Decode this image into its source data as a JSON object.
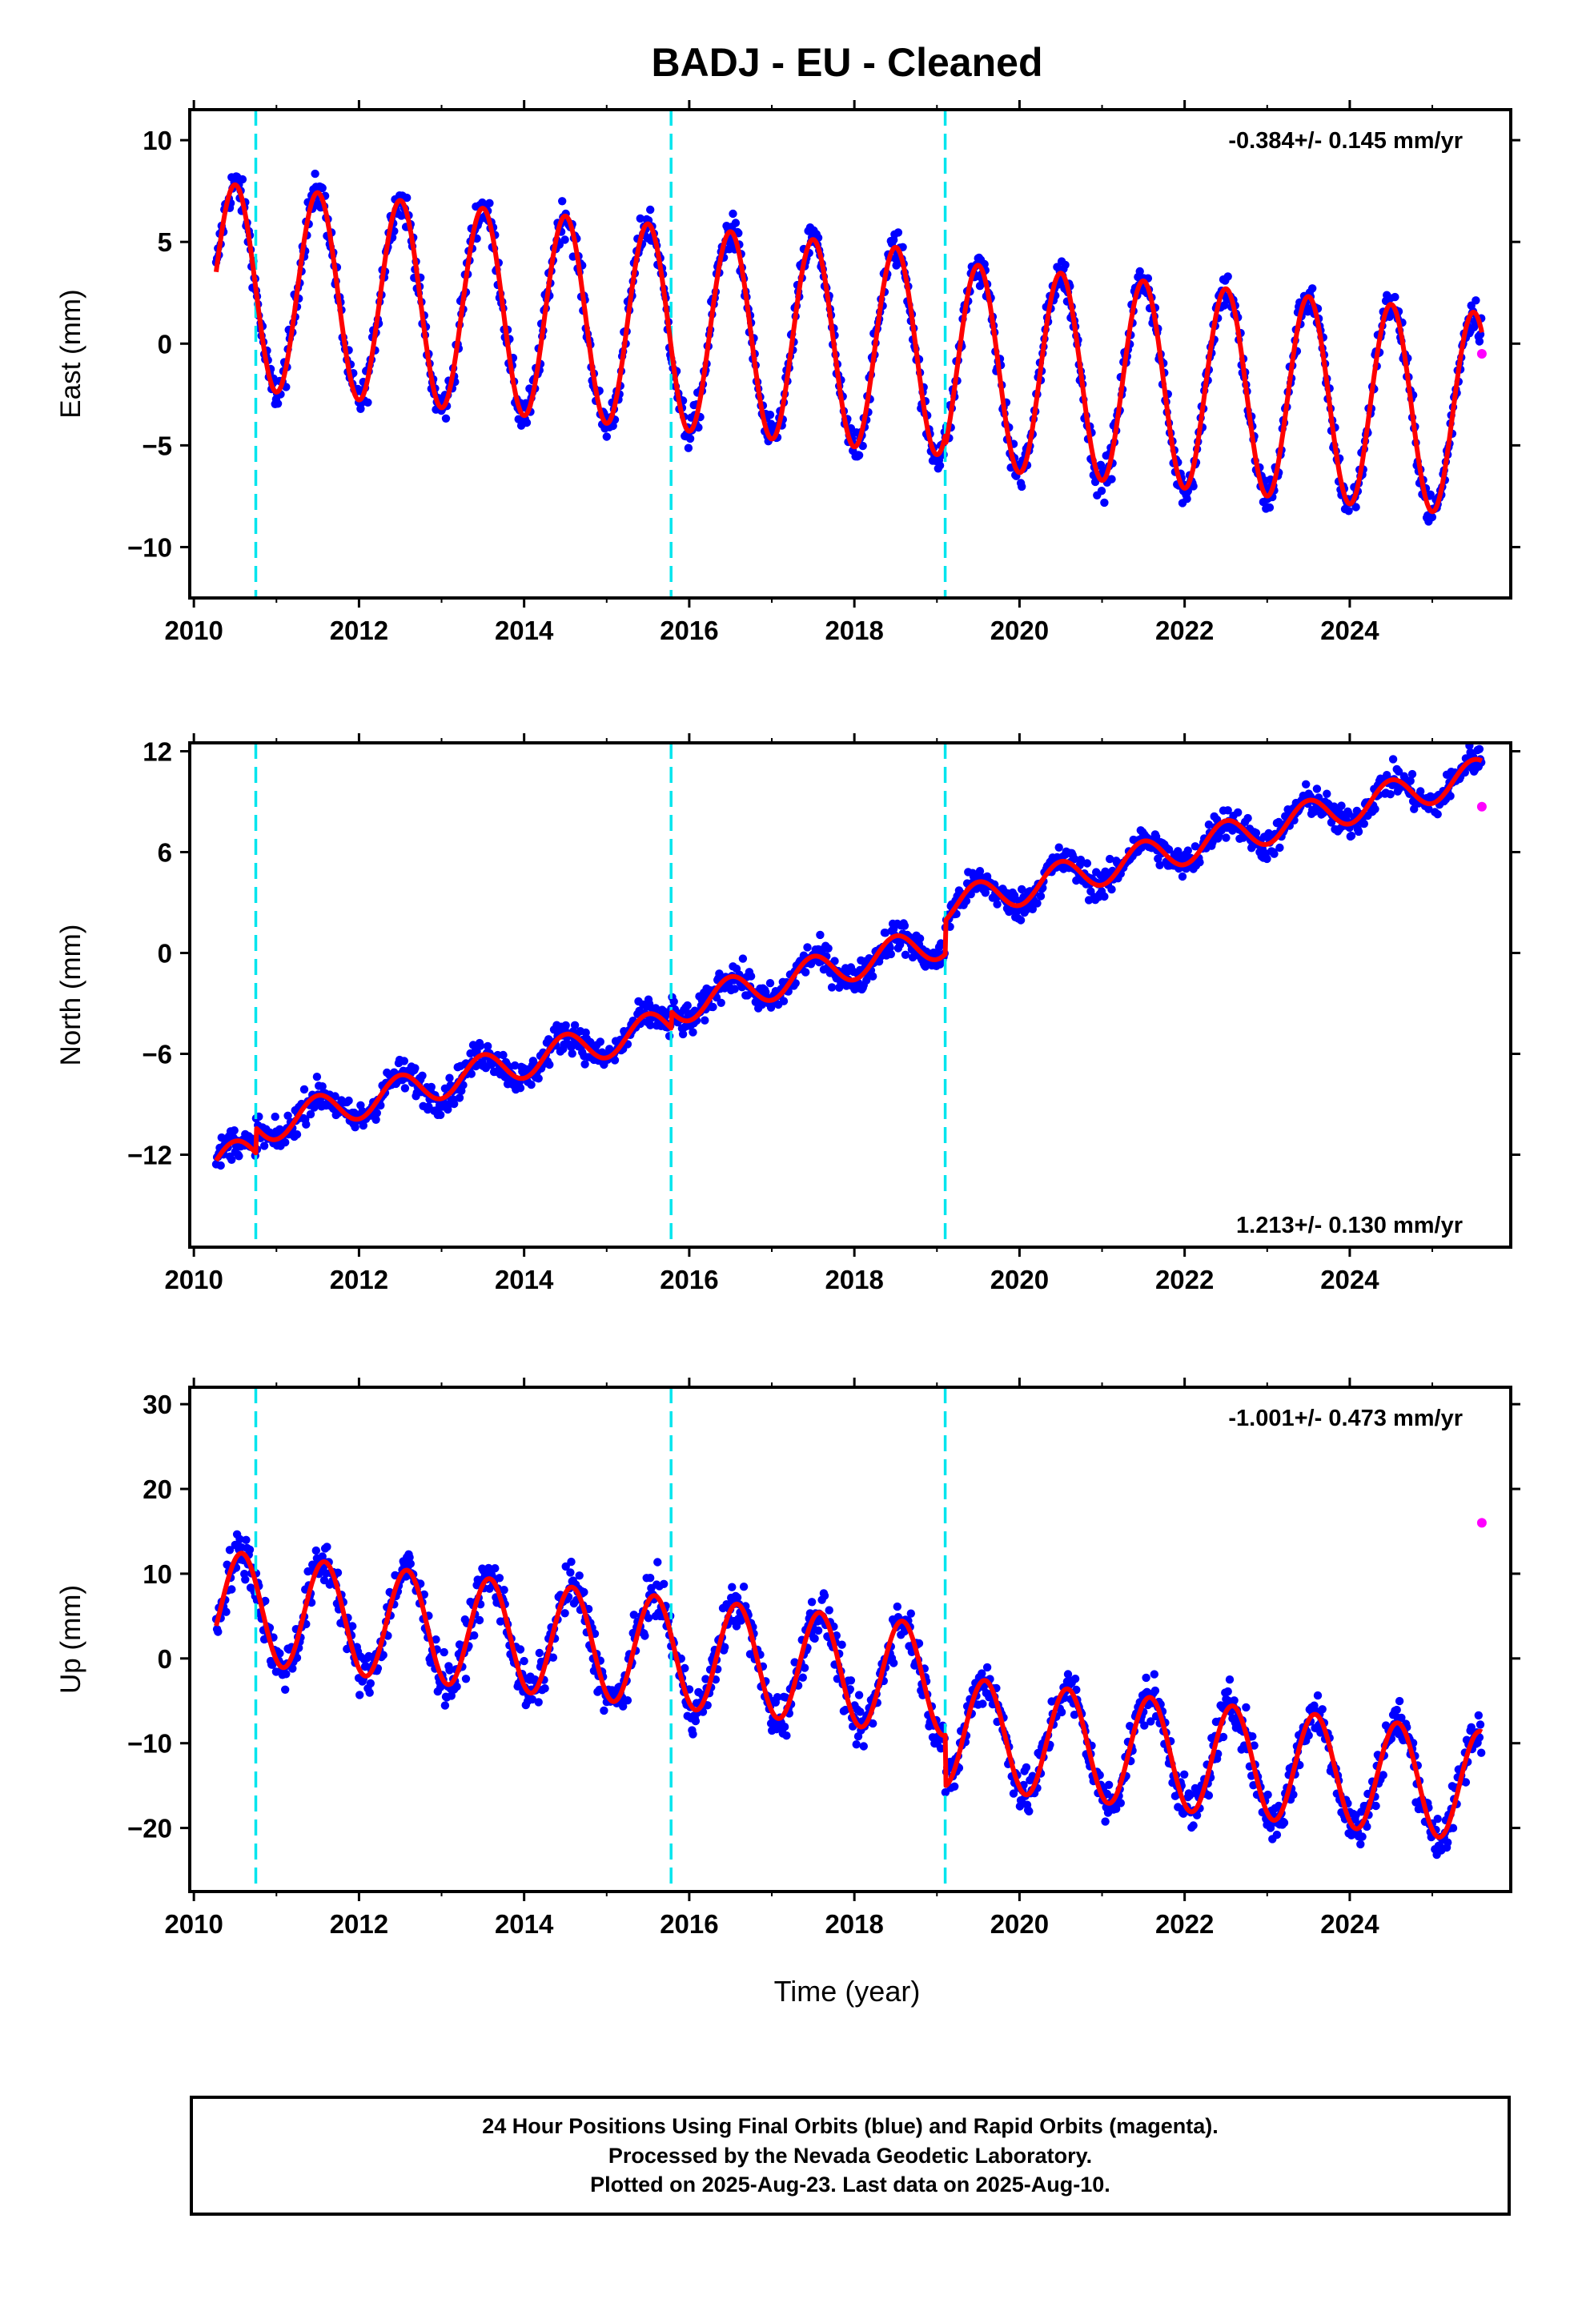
{
  "title": "BADJ  - EU - Cleaned",
  "xlabel": "Time (year)",
  "colors": {
    "final": "#0000ff",
    "rapid": "#ff00ff",
    "model": "#ff0000",
    "breaks": "#00e5ee"
  },
  "footer": {
    "line1": "24 Hour Positions Using Final Orbits (blue) and Rapid Orbits (magenta).",
    "line2": "Processed by the Nevada Geodetic Laboratory.",
    "line3": "Plotted on 2025-Aug-23. Last data on 2025-Aug-10."
  },
  "chart_data": [
    {
      "type": "scatter",
      "ylabel": "East (mm)",
      "rate_text": "-0.384+/- 0.145 mm/yr",
      "rate_position": "top-right",
      "xlim": [
        2009.95,
        2025.95
      ],
      "ylim": [
        -12.5,
        11.5
      ],
      "xticks": [
        2010,
        2012,
        2014,
        2016,
        2018,
        2020,
        2022,
        2024
      ],
      "yticks": [
        -10,
        -5,
        0,
        5,
        10
      ],
      "breaks": [
        2010.75,
        2015.78,
        2019.1
      ],
      "data_start": 2010.27,
      "data_end": 2025.6,
      "model": {
        "trend_mm_per_yr": -0.384,
        "offset_at_2010_mm": 3.0,
        "annual_amplitude_mm": 5.0,
        "annual_peak_year_fraction": 0.5,
        "step_offsets_mm": [
          0,
          0,
          -0.5
        ],
        "scatter_mm": 1.0
      },
      "rapid_points": [
        [
          2025.6,
          -0.5
        ]
      ]
    },
    {
      "type": "scatter",
      "ylabel": "North (mm)",
      "rate_text": "1.213+/- 0.130 mm/yr",
      "rate_position": "bottom-right",
      "xlim": [
        2009.95,
        2025.95
      ],
      "ylim": [
        -17.5,
        12.5
      ],
      "xticks": [
        2010,
        2012,
        2014,
        2016,
        2018,
        2020,
        2022,
        2024
      ],
      "yticks": [
        -12,
        -6,
        0,
        6,
        12
      ],
      "breaks": [
        2010.75,
        2015.78,
        2019.1
      ],
      "data_start": 2010.27,
      "data_end": 2025.6,
      "model": {
        "trend_mm_per_yr": 1.213,
        "offset_at_2010_mm": -12.8,
        "annual_amplitude_mm": 1.0,
        "annual_peak_year_fraction": 0.5,
        "step_offsets_mm": [
          1.5,
          1.0,
          2.0
        ],
        "scatter_mm": 1.0
      },
      "rapid_points": [
        [
          2025.6,
          8.7
        ]
      ]
    },
    {
      "type": "scatter",
      "ylabel": "Up (mm)",
      "rate_text": "-1.001+/- 0.473 mm/yr",
      "rate_position": "top-right",
      "xlim": [
        2009.95,
        2025.95
      ],
      "ylim": [
        -27.5,
        32
      ],
      "xticks": [
        2010,
        2012,
        2014,
        2016,
        2018,
        2020,
        2022,
        2024
      ],
      "yticks": [
        -20,
        -10,
        0,
        10,
        20,
        30
      ],
      "breaks": [
        2010.75,
        2015.78,
        2019.1
      ],
      "data_start": 2010.27,
      "data_end": 2025.6,
      "model": {
        "trend_mm_per_yr": -1.001,
        "offset_at_2010_mm": 6.5,
        "annual_amplitude_mm": 6.5,
        "annual_peak_year_fraction": 0.58,
        "step_offsets_mm": [
          0,
          0,
          -6.0
        ],
        "scatter_mm": 3.0
      },
      "rapid_points": [
        [
          2025.6,
          16.0
        ]
      ]
    }
  ]
}
